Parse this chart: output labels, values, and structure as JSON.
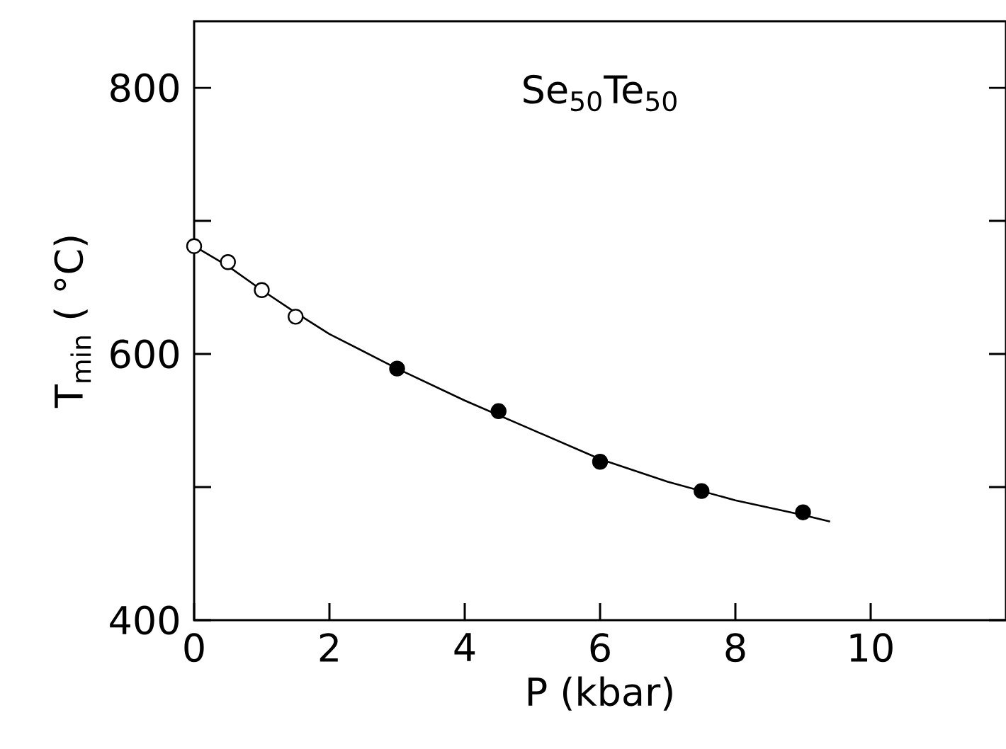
{
  "chart_data": {
    "type": "scatter",
    "xlabel": "P (kbar)",
    "ylabel": "T$_{min}$ ( °C)",
    "annotations": [
      "Se$_{50}$Te$_{50}$"
    ],
    "xlim": [
      0,
      12
    ],
    "ylim": [
      400,
      850
    ],
    "xticks": [
      0,
      2,
      4,
      6,
      8,
      10
    ],
    "yticks": [
      400,
      {
        "value": 500,
        "label": null
      },
      600,
      {
        "value": 700,
        "label": null
      },
      800
    ],
    "grid": false,
    "series": [
      {
        "marker": "circle",
        "color": "#ffffff",
        "x": [
          0,
          0.5,
          1,
          1.5
        ],
        "values": [
          681,
          669,
          648,
          628
        ]
      },
      {
        "marker": "circle",
        "color": "#000000",
        "x": [
          3,
          4.5,
          6,
          7.5,
          9
        ],
        "values": [
          589,
          557,
          519,
          497,
          481
        ]
      },
      {
        "type": "line",
        "marker": "none",
        "color": "#000000",
        "x": [
          0,
          0.5,
          1,
          1.5,
          2,
          3,
          4,
          5,
          6,
          7,
          8,
          9,
          9.4
        ],
        "values": [
          681,
          666,
          648,
          631,
          615,
          589,
          565,
          543,
          521,
          504,
          490,
          479,
          474
        ]
      }
    ]
  }
}
